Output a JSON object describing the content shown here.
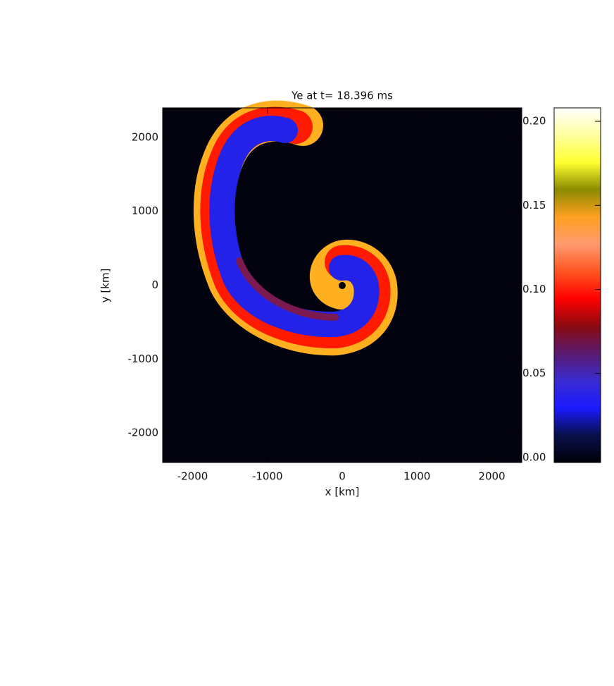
{
  "chart_data": {
    "type": "heatmap",
    "title": "Ye at t= 18.396 ms",
    "x_label": "x [km]",
    "y_label": "y [km]",
    "xlim": [
      -2400,
      2400
    ],
    "ylim": [
      -2400,
      2400
    ],
    "xticks": [
      -2000,
      -1000,
      0,
      1000,
      2000
    ],
    "yticks": [
      -2000,
      -1000,
      0,
      1000,
      2000
    ],
    "colorbar": {
      "clim": [
        -0.003,
        0.208
      ],
      "ticks": [
        {
          "value": 0,
          "label": "0.00"
        },
        {
          "value": 0.05,
          "label": "0.05"
        },
        {
          "value": 0.1,
          "label": "0.10"
        },
        {
          "value": 0.15,
          "label": "0.15"
        },
        {
          "value": 0.2,
          "label": "0.20"
        }
      ],
      "colormap": [
        "#000008",
        "#08104a",
        "#1a1aff",
        "#3a2bd0",
        "#5a1a70",
        "#8a0a10",
        "#ff0000",
        "#ff5520",
        "#ff9a70",
        "#ffa020",
        "#8a8a00",
        "#ffff30",
        "#ffffa0",
        "#ffffff"
      ]
    }
  }
}
